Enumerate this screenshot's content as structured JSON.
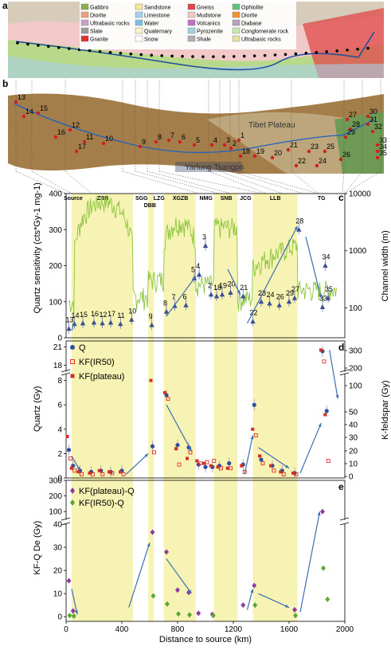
{
  "panels": {
    "a": "a",
    "b": "b",
    "c": "c",
    "d": "d",
    "e": "e"
  },
  "map_a": {
    "legend_col1": [
      "Gabbro",
      "Diorite",
      "Ultrabasic rocks",
      "Slate",
      "Granite"
    ],
    "legend_col2": [
      "Sandstone",
      "Limestone",
      "Water",
      "Quaternary",
      "Snow"
    ],
    "legend_col3": [
      "Gneiss",
      "Mudstone",
      "Volcanics",
      "Pyrozenite",
      "Shale"
    ],
    "legend_col4": [
      "Ophiolite",
      "Diorite",
      "Diabase",
      "Conglomerate rock",
      "Ultrabasic rocks"
    ],
    "colors_col1": [
      "#8db04a",
      "#f2a07a",
      "#c9a0c8",
      "#9c9c9c",
      "#e03030"
    ],
    "colors_col2": [
      "#f3e7a0",
      "#a8d0e8",
      "#7fbfe0",
      "#f8f3c8",
      "#ffffff"
    ],
    "colors_col3": [
      "#e04848",
      "#f0c8c8",
      "#c070c0",
      "#9fd0e8",
      "#b0b0b0"
    ],
    "colors_col4": [
      "#60c080",
      "#f09030",
      "#b9a0c0",
      "#c8e8b0",
      "#e8e0a0"
    ]
  },
  "map_b": {
    "tibet_label": "Tibet Plateau",
    "river_label": "Yarlung Tsangpo",
    "site_numbers": [
      "1",
      "2",
      "3",
      "4",
      "5",
      "6",
      "7",
      "8",
      "9",
      "10",
      "11",
      "12",
      "13",
      "14",
      "15",
      "16",
      "17",
      "18",
      "19",
      "20",
      "21",
      "22",
      "23",
      "24",
      "25",
      "26",
      "27",
      "28",
      "29",
      "30",
      "31",
      "32",
      "33",
      "34",
      "35"
    ]
  },
  "chart_data": [
    {
      "type": "scatter",
      "panel": "c",
      "ylabel_left": "Quartz sensitivity (cts*Gy-1 mg-1)",
      "ylabel_right": "Channel width (m)",
      "ylim": [
        0,
        400
      ],
      "yticks": [
        "0",
        "100",
        "200",
        "300",
        "400"
      ],
      "right_ticks": [
        "100",
        "1000",
        "10000"
      ],
      "right_scale": "log",
      "right_ylim": [
        30,
        10000
      ],
      "xlim": [
        0,
        2000
      ],
      "segments": [
        {
          "label": "Source",
          "range": [
            0,
            40
          ],
          "shaded": false
        },
        {
          "label": "ZBB",
          "range": [
            40,
            480
          ],
          "shaded": true
        },
        {
          "label": "SGG",
          "range": [
            480,
            590
          ],
          "shaded": false
        },
        {
          "label": "DBB",
          "range": [
            590,
            630
          ],
          "shaded": true
        },
        {
          "label": "LZG",
          "range": [
            630,
            700
          ],
          "shaded": false
        },
        {
          "label": "XGZB",
          "range": [
            700,
            930
          ],
          "shaded": true
        },
        {
          "label": "NMG",
          "range": [
            930,
            1060
          ],
          "shaded": false
        },
        {
          "label": "SNB",
          "range": [
            1060,
            1230
          ],
          "shaded": true
        },
        {
          "label": "JCG",
          "range": [
            1230,
            1340
          ],
          "shaded": false
        },
        {
          "label": "LLB",
          "range": [
            1340,
            1660
          ],
          "shaded": true
        },
        {
          "label": "TG",
          "range": [
            1660,
            2000
          ],
          "shaded": false
        }
      ],
      "series": [
        {
          "points": [
            {
              "site": "13",
              "x": 20,
              "y": 25
            },
            {
              "site": "14",
              "x": 60,
              "y": 38
            },
            {
              "site": "15",
              "x": 120,
              "y": 40
            },
            {
              "site": "16",
              "x": 200,
              "y": 42
            },
            {
              "site": "12",
              "x": 260,
              "y": 40
            },
            {
              "site": "17",
              "x": 320,
              "y": 42
            },
            {
              "site": "11",
              "x": 390,
              "y": 38
            },
            {
              "site": "10",
              "x": 470,
              "y": 50
            },
            {
              "site": "9",
              "x": 615,
              "y": 35
            },
            {
              "site": "8",
              "x": 720,
              "y": 72
            },
            {
              "site": "7",
              "x": 780,
              "y": 88
            },
            {
              "site": "6",
              "x": 860,
              "y": 90
            },
            {
              "site": "5",
              "x": 920,
              "y": 165
            },
            {
              "site": "4",
              "x": 955,
              "y": 175
            },
            {
              "site": "3",
              "x": 1000,
              "y": 255
            },
            {
              "site": "2",
              "x": 1040,
              "y": 120
            },
            {
              "site": "18",
              "x": 1080,
              "y": 115
            },
            {
              "site": "19",
              "x": 1120,
              "y": 120
            },
            {
              "site": "20",
              "x": 1180,
              "y": 125
            },
            {
              "site": "21",
              "x": 1270,
              "y": 115
            },
            {
              "site": "22",
              "x": 1340,
              "y": 45
            },
            {
              "site": "23",
              "x": 1400,
              "y": 100
            },
            {
              "site": "24",
              "x": 1460,
              "y": 95
            },
            {
              "site": "26",
              "x": 1530,
              "y": 90
            },
            {
              "site": "29",
              "x": 1600,
              "y": 100
            },
            {
              "site": "27",
              "x": 1640,
              "y": 110
            },
            {
              "site": "28",
              "x": 1670,
              "y": 300
            },
            {
              "site": "33",
              "x": 1840,
              "y": 85
            },
            {
              "site": "34",
              "x": 1860,
              "y": 200
            },
            {
              "site": "35",
              "x": 1880,
              "y": 110
            }
          ]
        }
      ]
    },
    {
      "type": "scatter",
      "panel": "d",
      "ylabel_left": "Quartz (Gy)",
      "ylabel_right": "K-feldspar (Gy)",
      "yticks_low": [
        "0",
        "2",
        "4",
        "6",
        "8"
      ],
      "yticks_high": [
        "18",
        "21"
      ],
      "right_ticks": [
        "0",
        "10",
        "20",
        "30",
        "40",
        "50",
        "100",
        "200",
        "300"
      ],
      "series": [
        {
          "name": "Q",
          "color": "#2e4f9e",
          "points": [
            {
              "x": 20,
              "y": 2.3
            },
            {
              "x": 50,
              "y": 1.0
            },
            {
              "x": 100,
              "y": 0.6
            },
            {
              "x": 180,
              "y": 0.5
            },
            {
              "x": 250,
              "y": 0.6
            },
            {
              "x": 320,
              "y": 0.5
            },
            {
              "x": 400,
              "y": 0.6
            },
            {
              "x": 620,
              "y": 2.6
            },
            {
              "x": 720,
              "y": 6.8
            },
            {
              "x": 800,
              "y": 2.7
            },
            {
              "x": 880,
              "y": 2.5
            },
            {
              "x": 950,
              "y": 1.1
            },
            {
              "x": 1000,
              "y": 0.9
            },
            {
              "x": 1050,
              "y": 0.9
            },
            {
              "x": 1100,
              "y": 1.0
            },
            {
              "x": 1170,
              "y": 1.2
            },
            {
              "x": 1270,
              "y": 1.1
            },
            {
              "x": 1350,
              "y": 6.0
            },
            {
              "x": 1400,
              "y": 1.5
            },
            {
              "x": 1480,
              "y": 1.0
            },
            {
              "x": 1550,
              "y": 0.6
            },
            {
              "x": 1640,
              "y": 0.4
            },
            {
              "x": 1840,
              "y": 20.3
            },
            {
              "x": 1870,
              "y": 5.5
            }
          ]
        },
        {
          "name": "KF(IR50)",
          "color": "#e43030",
          "points": [
            {
              "x": 20,
              "y": 1.6
            },
            {
              "x": 50,
              "y": 0.6
            },
            {
              "x": 100,
              "y": 0.3
            },
            {
              "x": 180,
              "y": 0.3
            },
            {
              "x": 250,
              "y": 0.3
            },
            {
              "x": 320,
              "y": 0.4
            },
            {
              "x": 400,
              "y": 0.3
            },
            {
              "x": 620,
              "y": 2.1
            },
            {
              "x": 720,
              "y": 6.5
            },
            {
              "x": 800,
              "y": 1.1
            },
            {
              "x": 880,
              "y": 2.1
            },
            {
              "x": 950,
              "y": 1.2
            },
            {
              "x": 1000,
              "y": 1.3
            },
            {
              "x": 1050,
              "y": 1.4
            },
            {
              "x": 1100,
              "y": 0.8
            },
            {
              "x": 1170,
              "y": 0.8
            },
            {
              "x": 1270,
              "y": 0.5
            },
            {
              "x": 1350,
              "y": 3.5
            },
            {
              "x": 1400,
              "y": 1.2
            },
            {
              "x": 1480,
              "y": 0.6
            },
            {
              "x": 1550,
              "y": 0.3
            },
            {
              "x": 1640,
              "y": 0.3
            },
            {
              "x": 1840,
              "y": 18.6
            },
            {
              "x": 1870,
              "y": 1.4
            }
          ]
        },
        {
          "name": "KF(plateau)",
          "color": "#d63020",
          "points": [
            {
              "x": 20,
              "y": 3.4
            },
            {
              "x": 50,
              "y": 0.8
            },
            {
              "x": 100,
              "y": 0.5
            },
            {
              "x": 180,
              "y": 0.4
            },
            {
              "x": 250,
              "y": 0.6
            },
            {
              "x": 320,
              "y": 0.5
            },
            {
              "x": 400,
              "y": 0.5
            },
            {
              "x": 620,
              "y": 8.0
            },
            {
              "x": 720,
              "y": 7.0
            },
            {
              "x": 800,
              "y": 2.4
            },
            {
              "x": 880,
              "y": 1.6
            },
            {
              "x": 950,
              "y": 1.4
            },
            {
              "x": 1000,
              "y": 1.2
            },
            {
              "x": 1050,
              "y": 1.0
            },
            {
              "x": 1100,
              "y": 0.9
            },
            {
              "x": 1170,
              "y": 0.8
            },
            {
              "x": 1270,
              "y": 1.0
            },
            {
              "x": 1350,
              "y": 4.0
            },
            {
              "x": 1400,
              "y": 1.8
            },
            {
              "x": 1480,
              "y": 1.0
            },
            {
              "x": 1550,
              "y": 0.5
            },
            {
              "x": 1640,
              "y": 0.4
            },
            {
              "x": 1840,
              "y": 20.5
            },
            {
              "x": 1870,
              "y": 5.2
            }
          ]
        }
      ]
    },
    {
      "type": "scatter",
      "panel": "e",
      "ylabel_left": "KF-Q De (Gy)",
      "yticks_low": [
        "0",
        "10",
        "20",
        "30",
        "40"
      ],
      "yticks_high": [
        "100",
        "200",
        "300"
      ],
      "xlabel": "Distance to source (km)",
      "xticks": [
        "0",
        "400",
        "800",
        "1200",
        "1600",
        "2000"
      ],
      "series": [
        {
          "name": "KF(plateau)-Q",
          "color": "#8e3b9e",
          "points": [
            {
              "x": 20,
              "y": 15.5
            },
            {
              "x": 50,
              "y": 2.5
            },
            {
              "x": 620,
              "y": 36.5
            },
            {
              "x": 720,
              "y": 28
            },
            {
              "x": 800,
              "y": 11.5
            },
            {
              "x": 880,
              "y": 10.5
            },
            {
              "x": 950,
              "y": 1.5
            },
            {
              "x": 1050,
              "y": 1.0
            },
            {
              "x": 1270,
              "y": 5.0
            },
            {
              "x": 1350,
              "y": 13.5
            },
            {
              "x": 1640,
              "y": 3.0
            },
            {
              "x": 1840,
              "y": 100
            }
          ]
        },
        {
          "name": "KF(IR50)-Q",
          "color": "#5aa832",
          "points": [
            {
              "x": 20,
              "y": 0.5
            },
            {
              "x": 50,
              "y": 0.3
            },
            {
              "x": 620,
              "y": 9.0
            },
            {
              "x": 720,
              "y": 5.5
            },
            {
              "x": 800,
              "y": 1.2
            },
            {
              "x": 880,
              "y": 0.8
            },
            {
              "x": 1050,
              "y": 0.5
            },
            {
              "x": 1350,
              "y": 5.0
            },
            {
              "x": 1640,
              "y": 0.5
            },
            {
              "x": 1840,
              "y": 21
            },
            {
              "x": 1870,
              "y": 7.5
            }
          ]
        }
      ]
    }
  ]
}
